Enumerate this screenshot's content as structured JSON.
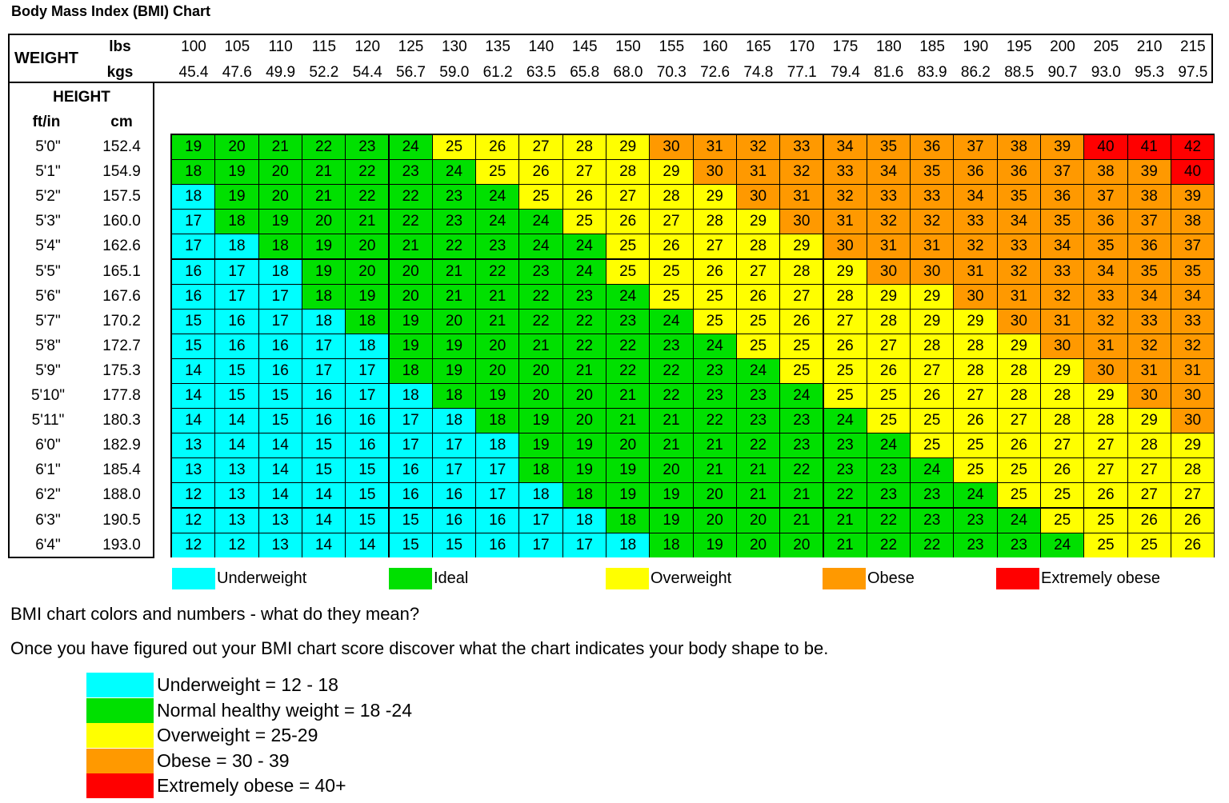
{
  "title": "Body Mass Index (BMI) Chart",
  "weight_label": "WEIGHT",
  "lbs_label": "lbs",
  "kgs_label": "kgs",
  "height_label": "HEIGHT",
  "ftin_label": "ft/in",
  "cm_label": "cm",
  "colors": {
    "underweight": "#00ffff",
    "ideal": "#00e000",
    "overweight": "#ffff00",
    "obese": "#ff9900",
    "extremely_obese": "#ff0000"
  },
  "legend": [
    {
      "label": "Underweight",
      "color": "#00ffff"
    },
    {
      "label": "Ideal",
      "color": "#00e000"
    },
    {
      "label": "Overweight",
      "color": "#ffff00"
    },
    {
      "label": "Obese",
      "color": "#ff9900"
    },
    {
      "label": "Extremely obese",
      "color": "#ff0000"
    }
  ],
  "question": "BMI chart colors and numbers - what do they mean?",
  "instruction": "Once you have figured out your BMI chart score discover what the chart indicates your body shape to be.",
  "ranges": [
    {
      "label": "Underweight = 12 - 18",
      "color": "#00ffff"
    },
    {
      "label": "Normal healthy weight = 18 -24",
      "color": "#00e000"
    },
    {
      "label": "Overweight = 25-29",
      "color": "#ffff00"
    },
    {
      "label": "Obese = 30 - 39",
      "color": "#ff9900"
    },
    {
      "label": "Extremely obese = 40+",
      "color": "#ff0000"
    }
  ],
  "chart_data": {
    "type": "heatmap",
    "title": "Body Mass Index (BMI) Chart",
    "x_lbs": [
      "100",
      "105",
      "110",
      "115",
      "120",
      "125",
      "130",
      "135",
      "140",
      "145",
      "150",
      "155",
      "160",
      "165",
      "170",
      "175",
      "180",
      "185",
      "190",
      "195",
      "200",
      "205",
      "210",
      "215"
    ],
    "x_kgs": [
      "45.4",
      "47.6",
      "49.9",
      "52.2",
      "54.4",
      "56.7",
      "59.0",
      "61.2",
      "63.5",
      "65.8",
      "68.0",
      "70.3",
      "72.6",
      "74.8",
      "77.1",
      "79.4",
      "81.6",
      "83.9",
      "86.2",
      "88.5",
      "90.7",
      "93.0",
      "95.3",
      "97.5"
    ],
    "y_ftin": [
      "5'0\"",
      "5'1\"",
      "5'2\"",
      "5'3\"",
      "5'4\"",
      "5'5\"",
      "5'6\"",
      "5'7\"",
      "5'8\"",
      "5'9\"",
      "5'10\"",
      "5'11\"",
      "6'0\"",
      "6'1\"",
      "6'2\"",
      "6'3\"",
      "6'4\""
    ],
    "y_cm": [
      "152.4",
      "154.9",
      "157.5",
      "160.0",
      "162.6",
      "165.1",
      "167.6",
      "170.2",
      "172.7",
      "175.3",
      "177.8",
      "180.3",
      "182.9",
      "185.4",
      "188.0",
      "190.5",
      "193.0"
    ],
    "values": [
      [
        19,
        20,
        21,
        22,
        23,
        24,
        25,
        26,
        27,
        28,
        29,
        30,
        31,
        32,
        33,
        34,
        35,
        36,
        37,
        38,
        39,
        40,
        41,
        42
      ],
      [
        18,
        19,
        20,
        21,
        22,
        23,
        24,
        25,
        26,
        27,
        28,
        29,
        30,
        31,
        32,
        33,
        34,
        35,
        36,
        36,
        37,
        38,
        39,
        40
      ],
      [
        18,
        19,
        20,
        21,
        22,
        22,
        23,
        24,
        25,
        26,
        27,
        28,
        29,
        30,
        31,
        32,
        33,
        33,
        34,
        35,
        36,
        37,
        38,
        39
      ],
      [
        17,
        18,
        19,
        20,
        21,
        22,
        23,
        24,
        24,
        25,
        26,
        27,
        28,
        29,
        30,
        31,
        32,
        32,
        33,
        34,
        35,
        36,
        37,
        38
      ],
      [
        17,
        18,
        18,
        19,
        20,
        21,
        22,
        23,
        24,
        24,
        25,
        26,
        27,
        28,
        29,
        30,
        31,
        31,
        32,
        33,
        34,
        35,
        36,
        37
      ],
      [
        16,
        17,
        18,
        19,
        20,
        20,
        21,
        22,
        23,
        24,
        25,
        25,
        26,
        27,
        28,
        29,
        30,
        30,
        31,
        32,
        33,
        34,
        35,
        35
      ],
      [
        16,
        17,
        17,
        18,
        19,
        20,
        21,
        21,
        22,
        23,
        24,
        25,
        25,
        26,
        27,
        28,
        29,
        29,
        30,
        31,
        32,
        33,
        34,
        34
      ],
      [
        15,
        16,
        17,
        18,
        18,
        19,
        20,
        21,
        22,
        22,
        23,
        24,
        25,
        25,
        26,
        27,
        28,
        29,
        29,
        30,
        31,
        32,
        33,
        33
      ],
      [
        15,
        16,
        16,
        17,
        18,
        19,
        19,
        20,
        21,
        22,
        22,
        23,
        24,
        25,
        25,
        26,
        27,
        28,
        28,
        29,
        30,
        31,
        32,
        32
      ],
      [
        14,
        15,
        16,
        17,
        17,
        18,
        19,
        20,
        20,
        21,
        22,
        22,
        23,
        24,
        25,
        25,
        26,
        27,
        28,
        28,
        29,
        30,
        31,
        31
      ],
      [
        14,
        15,
        15,
        16,
        17,
        18,
        18,
        19,
        20,
        20,
        21,
        22,
        23,
        23,
        24,
        25,
        25,
        26,
        27,
        28,
        28,
        29,
        30,
        30
      ],
      [
        14,
        14,
        15,
        16,
        16,
        17,
        18,
        18,
        19,
        20,
        21,
        21,
        22,
        23,
        23,
        24,
        25,
        25,
        26,
        27,
        28,
        28,
        29,
        30
      ],
      [
        13,
        14,
        14,
        15,
        16,
        17,
        17,
        18,
        19,
        19,
        20,
        21,
        21,
        22,
        23,
        23,
        24,
        25,
        25,
        26,
        27,
        27,
        28,
        29
      ],
      [
        13,
        13,
        14,
        15,
        15,
        16,
        17,
        17,
        18,
        19,
        19,
        20,
        21,
        21,
        22,
        23,
        23,
        24,
        25,
        25,
        26,
        27,
        27,
        28
      ],
      [
        12,
        13,
        14,
        14,
        15,
        16,
        16,
        17,
        18,
        18,
        19,
        19,
        20,
        21,
        21,
        22,
        23,
        23,
        24,
        25,
        25,
        26,
        27,
        27
      ],
      [
        12,
        13,
        13,
        14,
        15,
        15,
        16,
        16,
        17,
        18,
        18,
        19,
        20,
        20,
        21,
        21,
        22,
        23,
        23,
        24,
        25,
        25,
        26,
        26
      ],
      [
        12,
        12,
        13,
        14,
        14,
        15,
        15,
        16,
        17,
        17,
        18,
        18,
        19,
        20,
        20,
        21,
        22,
        22,
        23,
        23,
        24,
        25,
        25,
        26
      ]
    ],
    "categories": [
      [
        1,
        1,
        1,
        1,
        1,
        1,
        2,
        2,
        2,
        2,
        2,
        3,
        3,
        3,
        3,
        3,
        3,
        3,
        3,
        3,
        3,
        4,
        4,
        4
      ],
      [
        1,
        1,
        1,
        1,
        1,
        1,
        1,
        2,
        2,
        2,
        2,
        2,
        3,
        3,
        3,
        3,
        3,
        3,
        3,
        3,
        3,
        3,
        3,
        4
      ],
      [
        0,
        1,
        1,
        1,
        1,
        1,
        1,
        1,
        2,
        2,
        2,
        2,
        2,
        3,
        3,
        3,
        3,
        3,
        3,
        3,
        3,
        3,
        3,
        3
      ],
      [
        0,
        1,
        1,
        1,
        1,
        1,
        1,
        1,
        1,
        2,
        2,
        2,
        2,
        2,
        3,
        3,
        3,
        3,
        3,
        3,
        3,
        3,
        3,
        3
      ],
      [
        0,
        0,
        1,
        1,
        1,
        1,
        1,
        1,
        1,
        1,
        2,
        2,
        2,
        2,
        2,
        3,
        3,
        3,
        3,
        3,
        3,
        3,
        3,
        3
      ],
      [
        0,
        0,
        0,
        1,
        1,
        1,
        1,
        1,
        1,
        1,
        2,
        2,
        2,
        2,
        2,
        2,
        3,
        3,
        3,
        3,
        3,
        3,
        3,
        3
      ],
      [
        0,
        0,
        0,
        1,
        1,
        1,
        1,
        1,
        1,
        1,
        1,
        2,
        2,
        2,
        2,
        2,
        2,
        2,
        3,
        3,
        3,
        3,
        3,
        3
      ],
      [
        0,
        0,
        0,
        0,
        1,
        1,
        1,
        1,
        1,
        1,
        1,
        1,
        2,
        2,
        2,
        2,
        2,
        2,
        2,
        3,
        3,
        3,
        3,
        3
      ],
      [
        0,
        0,
        0,
        0,
        0,
        1,
        1,
        1,
        1,
        1,
        1,
        1,
        1,
        2,
        2,
        2,
        2,
        2,
        2,
        2,
        3,
        3,
        3,
        3
      ],
      [
        0,
        0,
        0,
        0,
        0,
        1,
        1,
        1,
        1,
        1,
        1,
        1,
        1,
        1,
        2,
        2,
        2,
        2,
        2,
        2,
        2,
        3,
        3,
        3
      ],
      [
        0,
        0,
        0,
        0,
        0,
        0,
        1,
        1,
        1,
        1,
        1,
        1,
        1,
        1,
        1,
        2,
        2,
        2,
        2,
        2,
        2,
        2,
        3,
        3
      ],
      [
        0,
        0,
        0,
        0,
        0,
        0,
        0,
        1,
        1,
        1,
        1,
        1,
        1,
        1,
        1,
        1,
        2,
        2,
        2,
        2,
        2,
        2,
        2,
        3
      ],
      [
        0,
        0,
        0,
        0,
        0,
        0,
        0,
        0,
        1,
        1,
        1,
        1,
        1,
        1,
        1,
        1,
        1,
        2,
        2,
        2,
        2,
        2,
        2,
        2
      ],
      [
        0,
        0,
        0,
        0,
        0,
        0,
        0,
        0,
        1,
        1,
        1,
        1,
        1,
        1,
        1,
        1,
        1,
        1,
        2,
        2,
        2,
        2,
        2,
        2
      ],
      [
        0,
        0,
        0,
        0,
        0,
        0,
        0,
        0,
        0,
        1,
        1,
        1,
        1,
        1,
        1,
        1,
        1,
        1,
        1,
        2,
        2,
        2,
        2,
        2
      ],
      [
        0,
        0,
        0,
        0,
        0,
        0,
        0,
        0,
        0,
        0,
        1,
        1,
        1,
        1,
        1,
        1,
        1,
        1,
        1,
        1,
        2,
        2,
        2,
        2
      ],
      [
        0,
        0,
        0,
        0,
        0,
        0,
        0,
        0,
        0,
        0,
        0,
        1,
        1,
        1,
        1,
        1,
        1,
        1,
        1,
        1,
        1,
        2,
        2,
        2
      ]
    ]
  }
}
